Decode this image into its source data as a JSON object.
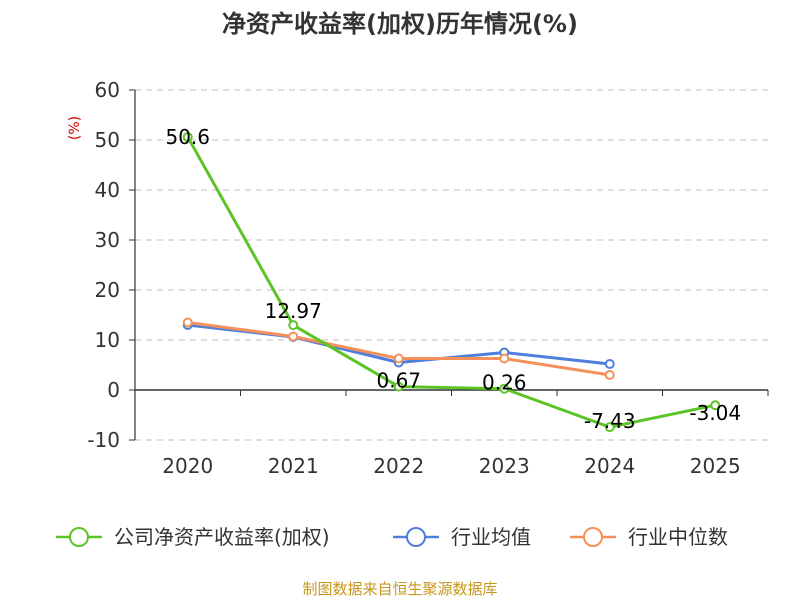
{
  "chart_data": {
    "type": "line",
    "title": "净资产收益率(加权)历年情况(%)",
    "ylabel": "(%)",
    "xlabel": "",
    "ylim": [
      -10,
      60
    ],
    "yticks": [
      60,
      50,
      40,
      30,
      20,
      10,
      0,
      -10
    ],
    "categories": [
      "2020",
      "2021",
      "2022",
      "2023",
      "2024",
      "2025"
    ],
    "grid": true,
    "legend_position": "bottom",
    "series": [
      {
        "name": "公司净资产收益率(加权)",
        "color": "#5cc426",
        "values": [
          50.6,
          12.97,
          0.67,
          0.26,
          -7.43,
          -3.04
        ],
        "labels": [
          "50.6",
          "12.97",
          "0.67",
          "0.26",
          "-7.43",
          "-3.04"
        ]
      },
      {
        "name": "行业均值",
        "color": "#4e7fdc",
        "values": [
          13.0,
          10.6,
          5.5,
          7.5,
          5.2,
          null
        ]
      },
      {
        "name": "行业中位数",
        "color": "#f5905a",
        "values": [
          13.5,
          10.7,
          6.3,
          6.3,
          3.0,
          null
        ]
      }
    ]
  },
  "footer": {
    "source": "制图数据来自恒生聚源数据库"
  }
}
